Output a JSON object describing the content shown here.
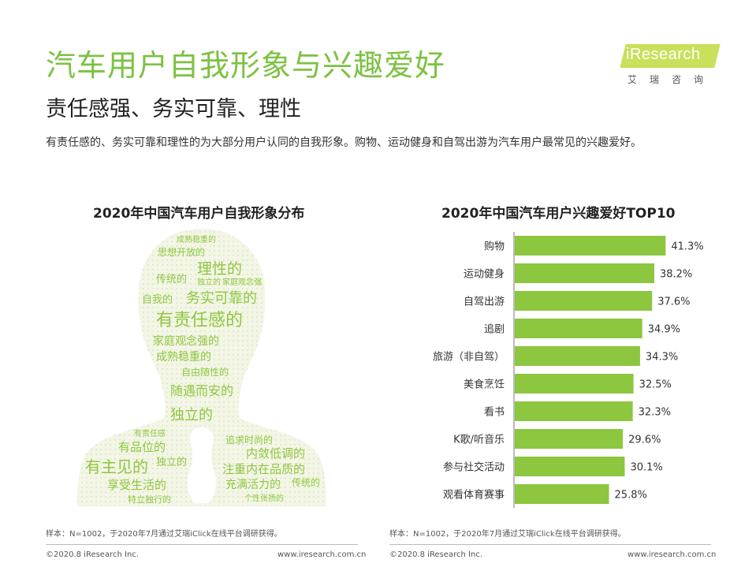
{
  "header": {
    "title": "汽车用户自我形象与兴趣爱好",
    "subtitle": "责任感强、务实可靠、理性",
    "description": "有责任感的、务实可靠和理性的为大部分用户认同的自我形象。购物、运动健身和自驾出游为汽车用户最常见的兴趣爱好。"
  },
  "logo": {
    "name": "iResearch",
    "cn": "艾瑞咨询"
  },
  "left_chart": {
    "title": "2020年中国汽车用户自我形象分布",
    "words": [
      "成熟稳重的",
      "思想开放的",
      "理性的",
      "传统的",
      "独立的",
      "家庭观念强",
      "自我的",
      "务实可靠的",
      "有责任感的",
      "家庭观念强的",
      "成熟稳重的",
      "自由随性的",
      "随遇而安的",
      "独立的",
      "有责任感",
      "追求时尚的",
      "有品位的",
      "内敛低调的",
      "独立的",
      "有主见的",
      "注重内在品质的",
      "享受生活的",
      "充满活力的",
      "传统的",
      "特立独行的",
      "个性张扬的",
      "自我的",
      "理性的",
      "有主见的"
    ]
  },
  "chart_data": {
    "type": "bar",
    "title": "2020年中国汽车用户兴趣爱好TOP10",
    "orientation": "horizontal",
    "categories": [
      "购物",
      "运动健身",
      "自驾出游",
      "追剧",
      "旅游（非自驾）",
      "美食烹饪",
      "看书",
      "K歌/听音乐",
      "参与社交活动",
      "观看体育赛事"
    ],
    "values": [
      41.3,
      38.2,
      37.6,
      34.9,
      34.3,
      32.5,
      32.3,
      29.6,
      30.1,
      25.8
    ],
    "value_labels": [
      "41.3%",
      "38.2%",
      "37.6%",
      "34.9%",
      "34.3%",
      "32.5%",
      "32.3%",
      "29.6%",
      "30.1%",
      "25.8%"
    ],
    "bar_color": "#8dc63f",
    "xlim": [
      0,
      60
    ]
  },
  "notes": {
    "left": "样本：N=1002，于2020年7月通过艾瑞iClick在线平台调研获得。",
    "right": "样本：N=1002，于2020年7月通过艾瑞iClick在线平台调研获得。"
  },
  "footer": {
    "copyright_left": "©2020.8 iResearch Inc.",
    "url_left": "www.iresearch.com.cn",
    "copyright_right": "©2020.8 iResearch Inc.",
    "url_right": "www.iresearch.com.cn"
  }
}
